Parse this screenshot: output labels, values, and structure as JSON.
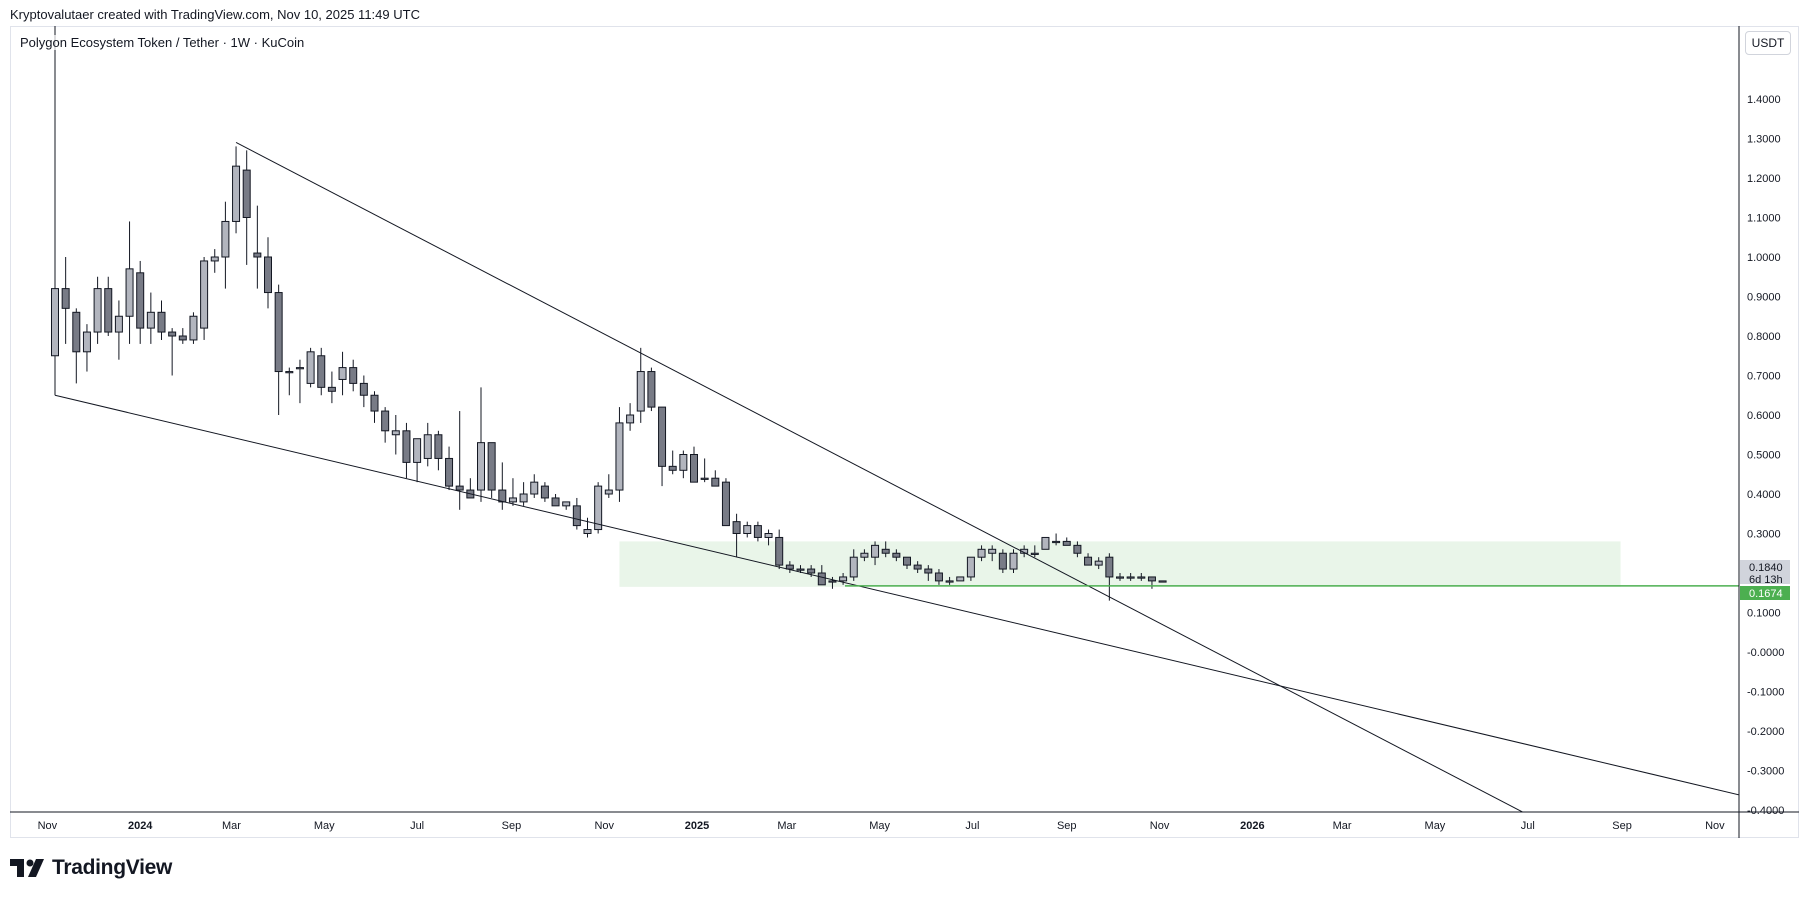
{
  "header": {
    "attribution": "Kryptovalutaer created with TradingView.com, Nov 10, 2025 11:49 UTC"
  },
  "symbol": {
    "title": "Polygon Ecosystem Token / Tether · 1W · KuCoin"
  },
  "currency_button": "USDT",
  "footer": {
    "logo_text": "TradingView"
  },
  "colors": {
    "candle_body": "#b2b5be",
    "candle_bear_body": "#787b86",
    "candle_outline": "#131722",
    "zone_fill": "#e9f5e9",
    "support_line": "#4caf50",
    "tag_green": "#4caf50",
    "tag_gray": "#d1d4dc"
  },
  "price_tags": {
    "last_price": "0.1840",
    "countdown": "6d 13h",
    "level": "0.1674"
  },
  "chart_data": {
    "type": "candlestick",
    "title": "Polygon Ecosystem Token / Tether · 1W · KuCoin",
    "ylim": [
      -0.45,
      1.55
    ],
    "price_axis_labels": [
      "1.4000",
      "1.3000",
      "1.2000",
      "1.1000",
      "1.0000",
      "0.9000",
      "0.8000",
      "0.7000",
      "0.6000",
      "0.5000",
      "0.4000",
      "0.3000",
      "0.2000",
      "0.1000",
      "-0.0000",
      "-0.1000",
      "-0.2000",
      "-0.3000",
      "-0.4000"
    ],
    "price_axis_values": [
      1.4,
      1.3,
      1.2,
      1.1,
      1.0,
      0.9,
      0.8,
      0.7,
      0.6,
      0.5,
      0.4,
      0.3,
      0.2,
      0.1,
      0.0,
      -0.1,
      -0.2,
      -0.3,
      -0.4
    ],
    "time_axis": [
      {
        "label": "Nov",
        "date": "2023-11-01",
        "bold": false
      },
      {
        "label": "2024",
        "date": "2024-01-01",
        "bold": true
      },
      {
        "label": "Mar",
        "date": "2024-03-01",
        "bold": false
      },
      {
        "label": "May",
        "date": "2024-05-01",
        "bold": false
      },
      {
        "label": "Jul",
        "date": "2024-07-01",
        "bold": false
      },
      {
        "label": "Sep",
        "date": "2024-09-01",
        "bold": false
      },
      {
        "label": "Nov",
        "date": "2024-11-01",
        "bold": false
      },
      {
        "label": "2025",
        "date": "2025-01-01",
        "bold": true
      },
      {
        "label": "Mar",
        "date": "2025-03-01",
        "bold": false
      },
      {
        "label": "May",
        "date": "2025-05-01",
        "bold": false
      },
      {
        "label": "Jul",
        "date": "2025-07-01",
        "bold": false
      },
      {
        "label": "Sep",
        "date": "2025-09-01",
        "bold": false
      },
      {
        "label": "Nov",
        "date": "2025-11-01",
        "bold": false
      },
      {
        "label": "2026",
        "date": "2026-01-01",
        "bold": true
      },
      {
        "label": "Mar",
        "date": "2026-03-01",
        "bold": false
      },
      {
        "label": "May",
        "date": "2026-05-01",
        "bold": false
      },
      {
        "label": "Jul",
        "date": "2026-07-01",
        "bold": false
      },
      {
        "label": "Sep",
        "date": "2026-09-01",
        "bold": false
      },
      {
        "label": "Nov",
        "date": "2026-11-01",
        "bold": false
      }
    ],
    "candles_weekly_ohlc": {
      "first_week": "2023-11-06",
      "ohlc": [
        [
          0.75,
          2.2,
          0.65,
          0.92
        ],
        [
          0.92,
          1.0,
          0.78,
          0.87
        ],
        [
          0.86,
          0.87,
          0.68,
          0.76
        ],
        [
          0.76,
          0.83,
          0.71,
          0.81
        ],
        [
          0.81,
          0.95,
          0.78,
          0.92
        ],
        [
          0.92,
          0.95,
          0.8,
          0.81
        ],
        [
          0.81,
          0.89,
          0.74,
          0.85
        ],
        [
          0.85,
          1.09,
          0.78,
          0.97
        ],
        [
          0.96,
          0.99,
          0.78,
          0.82
        ],
        [
          0.82,
          0.91,
          0.78,
          0.86
        ],
        [
          0.86,
          0.89,
          0.79,
          0.81
        ],
        [
          0.81,
          0.82,
          0.7,
          0.8
        ],
        [
          0.8,
          0.82,
          0.78,
          0.79
        ],
        [
          0.79,
          0.86,
          0.78,
          0.85
        ],
        [
          0.82,
          1.0,
          0.79,
          0.99
        ],
        [
          0.99,
          1.02,
          0.96,
          1.0
        ],
        [
          1.0,
          1.14,
          0.92,
          1.09
        ],
        [
          1.09,
          1.28,
          1.06,
          1.23
        ],
        [
          1.22,
          1.27,
          0.98,
          1.1
        ],
        [
          1.01,
          1.13,
          0.92,
          1.0
        ],
        [
          1.0,
          1.05,
          0.87,
          0.91
        ],
        [
          0.91,
          0.93,
          0.6,
          0.71
        ],
        [
          0.71,
          0.72,
          0.65,
          0.71
        ],
        [
          0.72,
          0.74,
          0.63,
          0.72
        ],
        [
          0.68,
          0.77,
          0.67,
          0.76
        ],
        [
          0.75,
          0.77,
          0.65,
          0.67
        ],
        [
          0.67,
          0.71,
          0.63,
          0.66
        ],
        [
          0.69,
          0.76,
          0.65,
          0.72
        ],
        [
          0.72,
          0.74,
          0.66,
          0.68
        ],
        [
          0.68,
          0.7,
          0.62,
          0.65
        ],
        [
          0.65,
          0.66,
          0.58,
          0.61
        ],
        [
          0.61,
          0.62,
          0.53,
          0.56
        ],
        [
          0.55,
          0.6,
          0.5,
          0.56
        ],
        [
          0.56,
          0.58,
          0.44,
          0.48
        ],
        [
          0.48,
          0.54,
          0.43,
          0.54
        ],
        [
          0.49,
          0.58,
          0.47,
          0.55
        ],
        [
          0.55,
          0.56,
          0.46,
          0.49
        ],
        [
          0.49,
          0.52,
          0.41,
          0.42
        ],
        [
          0.42,
          0.61,
          0.36,
          0.41
        ],
        [
          0.41,
          0.44,
          0.39,
          0.39
        ],
        [
          0.41,
          0.67,
          0.38,
          0.53
        ],
        [
          0.53,
          0.53,
          0.39,
          0.41
        ],
        [
          0.41,
          0.48,
          0.36,
          0.38
        ],
        [
          0.38,
          0.44,
          0.37,
          0.39
        ],
        [
          0.38,
          0.43,
          0.37,
          0.4
        ],
        [
          0.4,
          0.45,
          0.39,
          0.43
        ],
        [
          0.42,
          0.43,
          0.38,
          0.39
        ],
        [
          0.39,
          0.4,
          0.37,
          0.37
        ],
        [
          0.37,
          0.38,
          0.36,
          0.38
        ],
        [
          0.37,
          0.39,
          0.31,
          0.32
        ],
        [
          0.3,
          0.34,
          0.29,
          0.31
        ],
        [
          0.31,
          0.43,
          0.3,
          0.42
        ],
        [
          0.4,
          0.45,
          0.39,
          0.41
        ],
        [
          0.41,
          0.62,
          0.38,
          0.58
        ],
        [
          0.58,
          0.63,
          0.56,
          0.6
        ],
        [
          0.61,
          0.77,
          0.58,
          0.71
        ],
        [
          0.71,
          0.72,
          0.61,
          0.62
        ],
        [
          0.62,
          0.62,
          0.42,
          0.47
        ],
        [
          0.47,
          0.51,
          0.45,
          0.46
        ],
        [
          0.46,
          0.51,
          0.44,
          0.5
        ],
        [
          0.5,
          0.52,
          0.43,
          0.43
        ],
        [
          0.44,
          0.49,
          0.43,
          0.44
        ],
        [
          0.44,
          0.46,
          0.42,
          0.42
        ],
        [
          0.43,
          0.44,
          0.32,
          0.32
        ],
        [
          0.33,
          0.35,
          0.24,
          0.3
        ],
        [
          0.3,
          0.33,
          0.29,
          0.32
        ],
        [
          0.32,
          0.33,
          0.28,
          0.29
        ],
        [
          0.29,
          0.31,
          0.27,
          0.3
        ],
        [
          0.29,
          0.31,
          0.21,
          0.22
        ],
        [
          0.22,
          0.23,
          0.2,
          0.21
        ],
        [
          0.21,
          0.22,
          0.2,
          0.21
        ],
        [
          0.21,
          0.22,
          0.19,
          0.2
        ],
        [
          0.2,
          0.22,
          0.17,
          0.17
        ],
        [
          0.18,
          0.19,
          0.16,
          0.18
        ],
        [
          0.18,
          0.2,
          0.17,
          0.19
        ],
        [
          0.19,
          0.26,
          0.18,
          0.24
        ],
        [
          0.24,
          0.26,
          0.23,
          0.25
        ],
        [
          0.24,
          0.28,
          0.22,
          0.27
        ],
        [
          0.26,
          0.28,
          0.24,
          0.25
        ],
        [
          0.25,
          0.26,
          0.23,
          0.24
        ],
        [
          0.24,
          0.24,
          0.21,
          0.22
        ],
        [
          0.22,
          0.23,
          0.2,
          0.21
        ],
        [
          0.21,
          0.22,
          0.18,
          0.2
        ],
        [
          0.2,
          0.21,
          0.17,
          0.18
        ],
        [
          0.18,
          0.19,
          0.17,
          0.18
        ],
        [
          0.18,
          0.19,
          0.18,
          0.19
        ],
        [
          0.19,
          0.24,
          0.18,
          0.24
        ],
        [
          0.24,
          0.27,
          0.23,
          0.26
        ],
        [
          0.25,
          0.27,
          0.23,
          0.26
        ],
        [
          0.25,
          0.26,
          0.2,
          0.21
        ],
        [
          0.21,
          0.26,
          0.2,
          0.25
        ],
        [
          0.25,
          0.27,
          0.24,
          0.26
        ],
        [
          0.25,
          0.27,
          0.24,
          0.25
        ],
        [
          0.26,
          0.29,
          0.26,
          0.29
        ],
        [
          0.28,
          0.3,
          0.27,
          0.28
        ],
        [
          0.28,
          0.29,
          0.27,
          0.27
        ],
        [
          0.27,
          0.28,
          0.24,
          0.25
        ],
        [
          0.24,
          0.25,
          0.22,
          0.22
        ],
        [
          0.22,
          0.24,
          0.21,
          0.23
        ],
        [
          0.24,
          0.25,
          0.13,
          0.19
        ],
        [
          0.19,
          0.2,
          0.18,
          0.19
        ],
        [
          0.19,
          0.2,
          0.18,
          0.19
        ],
        [
          0.19,
          0.2,
          0.18,
          0.19
        ],
        [
          0.19,
          0.19,
          0.16,
          0.18
        ],
        [
          0.18,
          0.18,
          0.18,
          0.18
        ]
      ]
    },
    "trendlines": [
      {
        "name": "descending-resistance",
        "from": {
          "date": "2024-03-04",
          "price": 1.29
        },
        "to": {
          "date": "2026-07-20",
          "price": -0.45
        }
      },
      {
        "name": "descending-support",
        "from": {
          "date": "2023-11-06",
          "price": 0.65
        },
        "to": {
          "date": "2026-12-07",
          "price": -0.38
        }
      }
    ],
    "horizontal_levels": [
      {
        "name": "support-level",
        "price": 0.1674
      }
    ],
    "zones": [
      {
        "name": "demand-zone",
        "from_date": "2024-11-11",
        "to_date": "2026-08-31",
        "price_top": 0.28,
        "price_bottom": 0.165
      }
    ]
  }
}
